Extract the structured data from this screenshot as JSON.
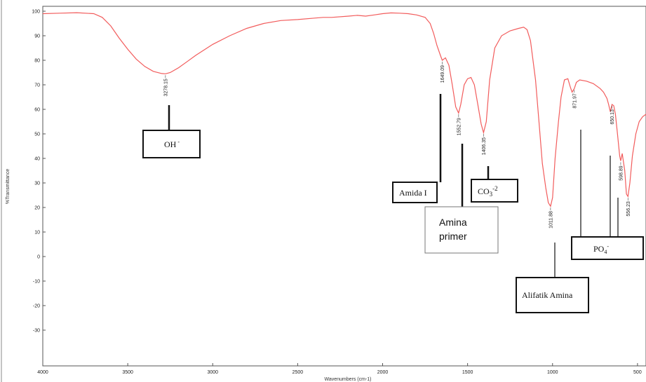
{
  "chart_data": {
    "type": "line",
    "xlabel": "Wavenumbers (cm-1)",
    "ylabel": "%Transmittance",
    "xlim": [
      4000,
      450
    ],
    "ylim": [
      -40,
      100
    ],
    "x_ticks": [
      "4000",
      "3500",
      "3000",
      "2500",
      "2000",
      "1500",
      "1000",
      "500"
    ],
    "y_ticks": [
      "100",
      "90",
      "80",
      "70",
      "60",
      "50",
      "40",
      "30",
      "20",
      "10",
      "0",
      "-10",
      "-20",
      "-30"
    ],
    "series": [
      {
        "color": "#f25c5c",
        "x": [
          4000,
          3900,
          3800,
          3700,
          3650,
          3600,
          3550,
          3500,
          3450,
          3400,
          3350,
          3300,
          3278,
          3250,
          3200,
          3150,
          3100,
          3000,
          2900,
          2800,
          2700,
          2600,
          2500,
          2400,
          2350,
          2300,
          2200,
          2150,
          2100,
          2050,
          2000,
          1950,
          1900,
          1850,
          1800,
          1750,
          1720,
          1700,
          1680,
          1660,
          1649,
          1630,
          1610,
          1590,
          1570,
          1553,
          1540,
          1520,
          1500,
          1480,
          1460,
          1440,
          1420,
          1406,
          1390,
          1370,
          1340,
          1300,
          1250,
          1200,
          1170,
          1150,
          1130,
          1100,
          1080,
          1060,
          1040,
          1025,
          1012,
          1000,
          985,
          965,
          950,
          930,
          910,
          895,
          885,
          872,
          860,
          840,
          800,
          760,
          720,
          700,
          680,
          670,
          660,
          650,
          640,
          630,
          620,
          605,
          599,
          590,
          575,
          565,
          556,
          545,
          530,
          510,
          490,
          470,
          450
        ],
        "y": [
          99,
          99.2,
          99.4,
          99,
          97.5,
          94,
          89,
          84.5,
          80.5,
          77.5,
          75.5,
          74.6,
          74.5,
          75,
          77,
          79.5,
          82,
          86.5,
          90,
          93,
          95,
          96.2,
          96.6,
          97.2,
          97.5,
          97.5,
          98,
          98.3,
          98,
          98.5,
          99,
          99.3,
          99.2,
          99,
          98.5,
          97.5,
          95,
          91,
          86,
          82,
          80,
          81,
          78,
          70,
          61,
          58.5,
          62,
          70,
          72.5,
          73,
          70,
          62,
          54,
          50.5,
          55,
          72,
          85,
          90,
          92,
          93,
          93.5,
          92.5,
          88,
          72,
          55,
          38,
          28,
          22,
          20.5,
          24,
          40,
          55,
          65,
          72,
          72.5,
          69,
          67,
          68.5,
          71,
          72,
          71.5,
          70.5,
          68.5,
          67,
          64.5,
          62,
          59,
          62,
          61.5,
          58,
          51.5,
          41,
          39,
          42,
          35,
          25.5,
          24.5,
          30,
          41,
          50,
          55,
          57,
          58
        ]
      }
    ],
    "peak_labels": [
      {
        "x": 3278.15,
        "text": "3278.15"
      },
      {
        "x": 1649.09,
        "text": "1649.09"
      },
      {
        "x": 1552.79,
        "text": "1552.79"
      },
      {
        "x": 1406.35,
        "text": "1406.35"
      },
      {
        "x": 1011.88,
        "text": "1011.88"
      },
      {
        "x": 871.97,
        "text": "871.97"
      },
      {
        "x": 650.13,
        "text": "650.13"
      },
      {
        "x": 598.89,
        "text": "598.89"
      },
      {
        "x": 556.23,
        "text": "556.23"
      }
    ],
    "annotations": [
      {
        "text": "OH",
        "sup": "-",
        "sub": ""
      },
      {
        "text": "Amida I",
        "sup": "",
        "sub": ""
      },
      {
        "text": "Amina",
        "text2": "primer"
      },
      {
        "text": "CO",
        "sub": "3",
        "sup": "-2"
      },
      {
        "text": "Alifatik Amina",
        "sup": "",
        "sub": ""
      },
      {
        "text": "PO",
        "sub": "4",
        "sup": "-"
      }
    ],
    "grid": false
  }
}
